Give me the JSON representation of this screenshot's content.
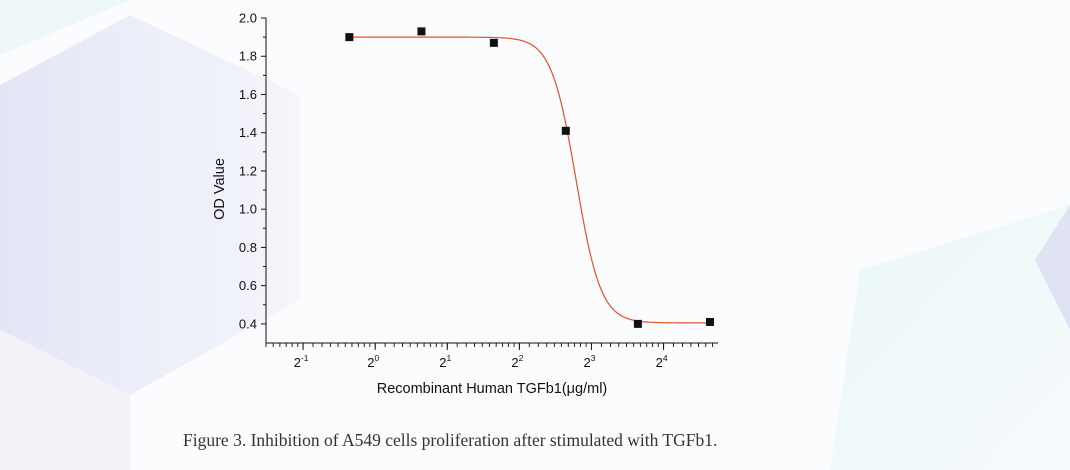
{
  "chart_data": {
    "type": "scatter",
    "title": "",
    "xlabel": "Recombinant Human TGFb1(μg/ml)",
    "ylabel": "OD Value",
    "x_scale": "log2",
    "xlim": [
      0.35,
      27
    ],
    "ylim": [
      0.3,
      2.0
    ],
    "x_ticks": [
      {
        "base": "2",
        "exp": "-1",
        "value": 0.5
      },
      {
        "base": "2",
        "exp": "0",
        "value": 1
      },
      {
        "base": "2",
        "exp": "1",
        "value": 2
      },
      {
        "base": "2",
        "exp": "2",
        "value": 4
      },
      {
        "base": "2",
        "exp": "3",
        "value": 8
      },
      {
        "base": "2",
        "exp": "4",
        "value": 16
      }
    ],
    "y_ticks": [
      "0.4",
      "0.6",
      "0.8",
      "1.0",
      "1.2",
      "1.4",
      "1.6",
      "1.8",
      "2.0"
    ],
    "series": [
      {
        "marker": "square",
        "color": "#111111",
        "points": [
          {
            "x": 0.78,
            "y": 1.9
          },
          {
            "x": 1.56,
            "y": 1.93
          },
          {
            "x": 3.13,
            "y": 1.87
          },
          {
            "x": 6.25,
            "y": 1.41
          },
          {
            "x": 12.5,
            "y": 0.4
          },
          {
            "x": 25,
            "y": 0.41
          }
        ]
      }
    ],
    "fit_curve": {
      "type": "logistic",
      "color": "#e8502a",
      "top": 1.9,
      "bottom": 0.405,
      "ec50": 6.9,
      "hill": 8.4
    },
    "grid": false,
    "legend": "none"
  },
  "caption": "Figure 3.   Inhibition of A549 cells proliferation after stimulated with TGFb1."
}
